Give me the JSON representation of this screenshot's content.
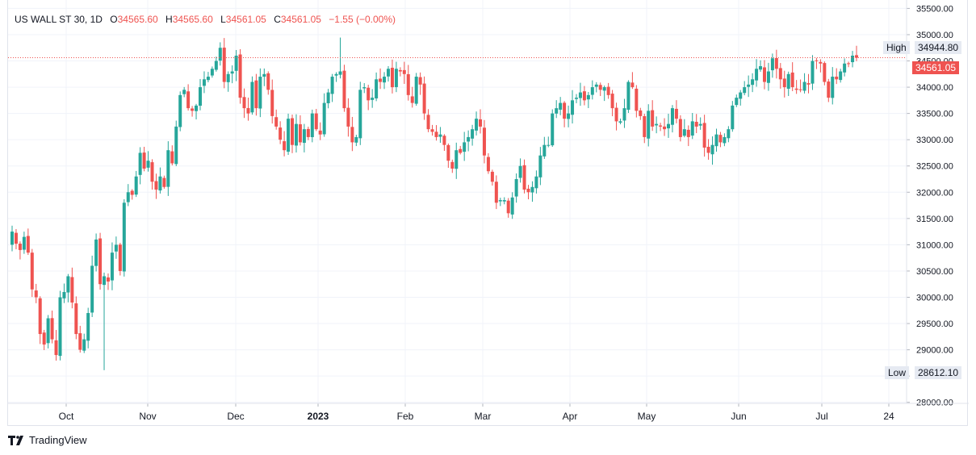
{
  "legend": {
    "symbol": "US WALL ST 30, 1D",
    "open_label": "O",
    "open": "34565.60",
    "high_label": "H",
    "high": "34565.60",
    "low_label": "L",
    "low": "34561.05",
    "close_label": "C",
    "close": "34561.05",
    "change": "−1.55 (−0.00%)"
  },
  "badges": {
    "high_label": "High",
    "high_value": "34944.80",
    "last_price": "34561.05",
    "low_label": "Low",
    "low_value": "28612.10"
  },
  "brand": {
    "name": "TradingView"
  },
  "colors": {
    "up": "#26a69a",
    "down": "#ef5350",
    "grid": "#f0f3fa",
    "axis_text": "#131722",
    "price_line": "#ef5350"
  },
  "chart_data": {
    "type": "candlestick",
    "title": "US WALL ST 30, 1D",
    "interval": "1D",
    "x_labels": [
      "Oct",
      "Nov",
      "Dec",
      "2023",
      "Feb",
      "Mar",
      "Apr",
      "May",
      "Jun",
      "Jul",
      "24"
    ],
    "y_ticks": [
      35500,
      35000,
      34500,
      34000,
      33500,
      33000,
      32500,
      32000,
      31500,
      31000,
      30500,
      30000,
      29500,
      29000,
      28500,
      28000
    ],
    "y_tick_labels": [
      "35500.00",
      "35000.00",
      "34500.00",
      "34000.00",
      "33500.00",
      "33000.00",
      "32500.00",
      "32000.00",
      "31500.00",
      "31000.00",
      "30500.00",
      "30000.00",
      "29500.00",
      "29000.00",
      "28500.00",
      "28000.00"
    ],
    "ylim": [
      27980,
      35660
    ],
    "high": 34944.8,
    "low": 28612.1,
    "last_price": 34561.05,
    "closes": [
      31250,
      31020,
      30900,
      31150,
      30850,
      30150,
      30000,
      29300,
      29100,
      29600,
      29200,
      28900,
      30000,
      30100,
      30400,
      29900,
      29300,
      29000,
      29200,
      29700,
      30600,
      31100,
      30250,
      30400,
      30300,
      30850,
      31000,
      30500,
      31800,
      32000,
      31950,
      32300,
      32750,
      32450,
      32600,
      32200,
      32050,
      32300,
      32100,
      32800,
      32550,
      33250,
      33850,
      33950,
      33600,
      33550,
      33650,
      34000,
      34150,
      34200,
      34350,
      34500,
      34750,
      34100,
      34250,
      34300,
      34600,
      33800,
      33600,
      33500,
      34100,
      33600,
      34200,
      34250,
      33950,
      33450,
      33250,
      33000,
      32800,
      33400,
      32900,
      33300,
      32950,
      33200,
      33050,
      33500,
      33200,
      33100,
      33700,
      33900,
      34200,
      34250,
      34300,
      33600,
      33250,
      32950,
      33050,
      33950,
      34000,
      33750,
      33800,
      34150,
      34100,
      34200,
      34350,
      34000,
      34350,
      34300,
      34250,
      33850,
      33700,
      34200,
      34050,
      33500,
      33200,
      33150,
      33050,
      33100,
      32900,
      32600,
      32450,
      32800,
      32750,
      32950,
      33050,
      33200,
      33400,
      33250,
      32700,
      32400,
      32200,
      31800,
      31850,
      31850,
      31600,
      31900,
      32250,
      32500,
      32050,
      32000,
      32100,
      32300,
      32700,
      32900,
      32900,
      33500,
      33600,
      33700,
      33400,
      33500,
      33750,
      33800,
      33900,
      33750,
      33850,
      34000,
      34050,
      33950,
      34000,
      33850,
      33600,
      33350,
      33350,
      33600,
      34100,
      34000,
      33550,
      33450,
      33050,
      33550,
      33250,
      33300,
      33250,
      33200,
      33300,
      33600,
      33400,
      33050,
      33200,
      33050,
      33350,
      33250,
      33300,
      32850,
      32750,
      32900,
      33100,
      32950,
      33050,
      33200,
      33650,
      33800,
      33900,
      34000,
      34050,
      34150,
      34350,
      34400,
      34100,
      34300,
      34550,
      34350,
      34150,
      34000,
      34250,
      34000,
      33950,
      33950,
      34100,
      34050,
      34500,
      34500,
      34450,
      34100,
      33800,
      34200,
      34150,
      34300,
      34450,
      34450,
      34600,
      34561
    ],
    "series": [
      {
        "name": "US WALL ST 30",
        "values_ref": "closes"
      }
    ]
  }
}
